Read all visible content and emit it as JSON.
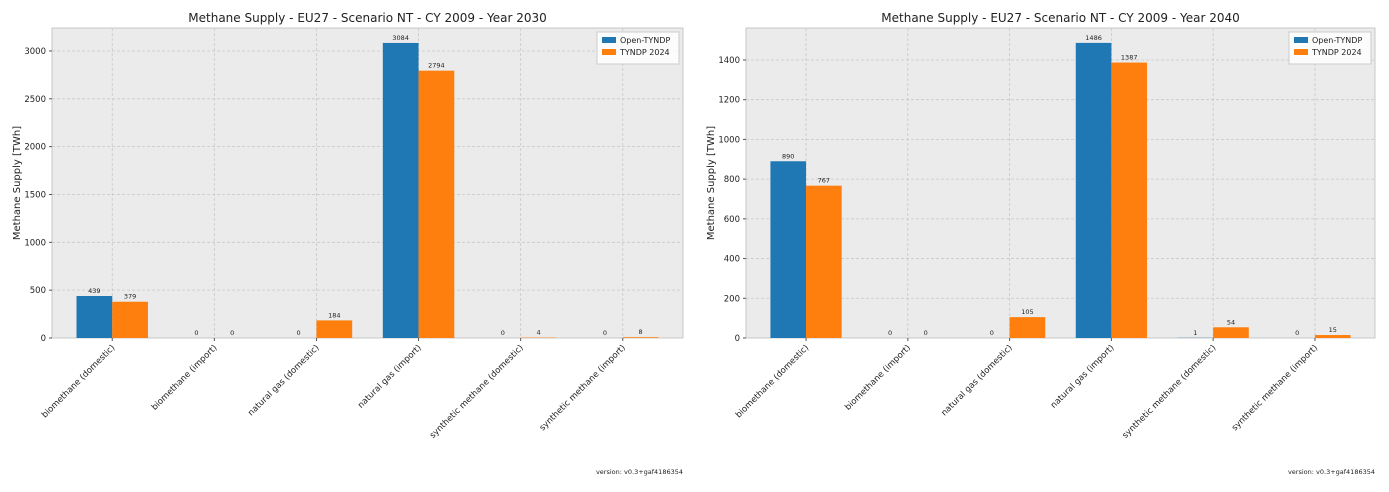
{
  "chart_data": [
    {
      "type": "bar",
      "title": "Methane Supply - EU27 - Scenario NT - CY 2009 - Year 2030",
      "y_label": "Methane Supply [TWh]",
      "categories": [
        "biomethane (domestic)",
        "biomethane (import)",
        "natural gas (domestic)",
        "natural gas (import)",
        "synthetic methane (domestic)",
        "synthetic methane (import)"
      ],
      "series": [
        {
          "name": "Open-TYNDP",
          "color": "#1f77b4",
          "values": [
            439,
            0,
            0,
            3084,
            0,
            0
          ]
        },
        {
          "name": "TYNDP 2024",
          "color": "#ff7f0e",
          "values": [
            379,
            0,
            184,
            2794,
            4,
            8
          ]
        }
      ],
      "ylim": [
        0,
        3240
      ],
      "yticks": [
        0,
        500,
        1000,
        1500,
        2000,
        2500,
        3000
      ],
      "grid": true,
      "legend": "upper right",
      "footnote": "version: v0.3+gaf4186354"
    },
    {
      "type": "bar",
      "title": "Methane Supply - EU27 - Scenario NT - CY 2009 - Year 2040",
      "y_label": "Methane Supply [TWh]",
      "categories": [
        "biomethane (domestic)",
        "biomethane (import)",
        "natural gas (domestic)",
        "natural gas (import)",
        "synthetic methane (domestic)",
        "synthetic methane (import)"
      ],
      "series": [
        {
          "name": "Open-TYNDP",
          "color": "#1f77b4",
          "values": [
            890,
            0,
            0,
            1486,
            1,
            0
          ]
        },
        {
          "name": "TYNDP 2024",
          "color": "#ff7f0e",
          "values": [
            767,
            0,
            105,
            1387,
            54,
            15
          ]
        }
      ],
      "ylim": [
        0,
        1561
      ],
      "yticks": [
        0,
        200,
        400,
        600,
        800,
        1000,
        1200,
        1400
      ],
      "grid": true,
      "legend": "upper right",
      "footnote": "version: v0.3+gaf4186354"
    }
  ]
}
